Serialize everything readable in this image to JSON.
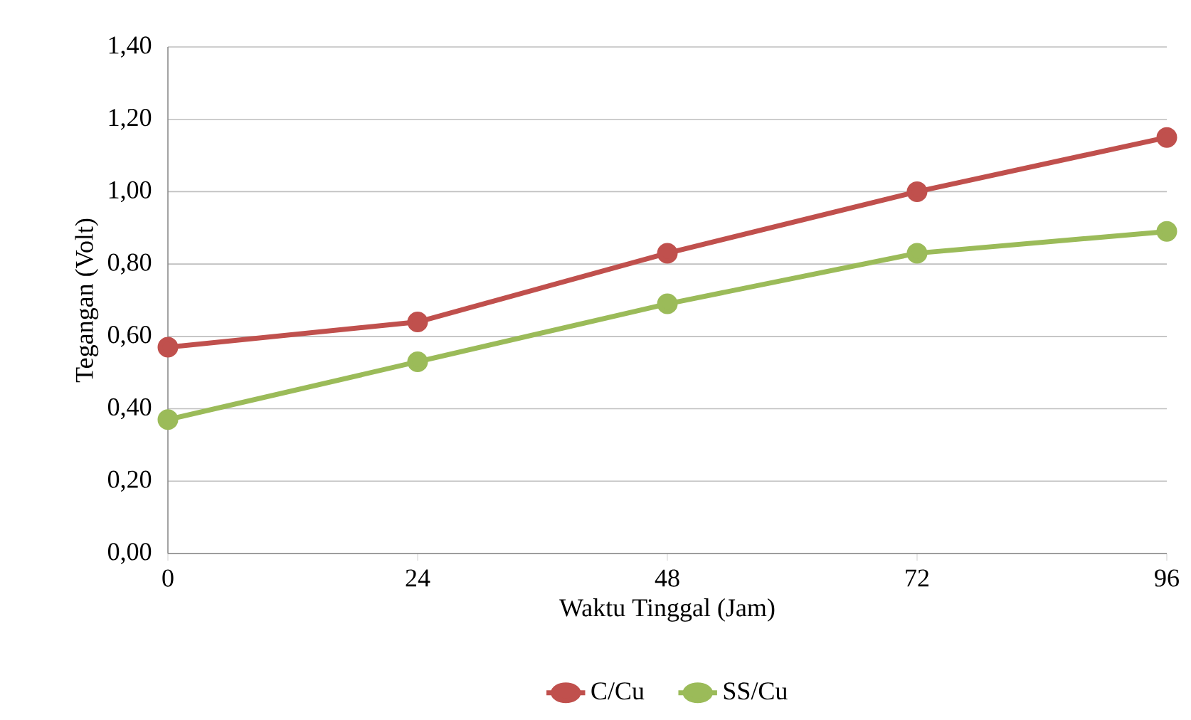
{
  "chart_data": {
    "type": "line",
    "xlabel": "Waktu Tinggal (Jam)",
    "ylabel": "Tegangan (Volt)",
    "x": [
      0,
      24,
      48,
      72,
      96
    ],
    "series": [
      {
        "name": "C/Cu",
        "color": "#c0504d",
        "values": [
          0.57,
          0.64,
          0.83,
          1.0,
          1.15
        ]
      },
      {
        "name": "SS/Cu",
        "color": "#9bbb59",
        "values": [
          0.37,
          0.53,
          0.69,
          0.83,
          0.89
        ]
      }
    ],
    "xlim": [
      0,
      96
    ],
    "xticks": [
      0,
      24,
      48,
      72,
      96
    ],
    "ylim": [
      0,
      1.4
    ],
    "yticks": [
      {
        "value": 0,
        "label": "0,00"
      },
      {
        "value": 0.2,
        "label": "0,20"
      },
      {
        "value": 0.4,
        "label": "0,40"
      },
      {
        "value": 0.6,
        "label": "0,60"
      },
      {
        "value": 0.8,
        "label": "0,80"
      },
      {
        "value": 1.0,
        "label": "1,00"
      },
      {
        "value": 1.2,
        "label": "1,20"
      },
      {
        "value": 1.4,
        "label": "1,40"
      }
    ],
    "grid": "y",
    "legend": "bottom",
    "marker": "circle",
    "line_style": "solid"
  }
}
